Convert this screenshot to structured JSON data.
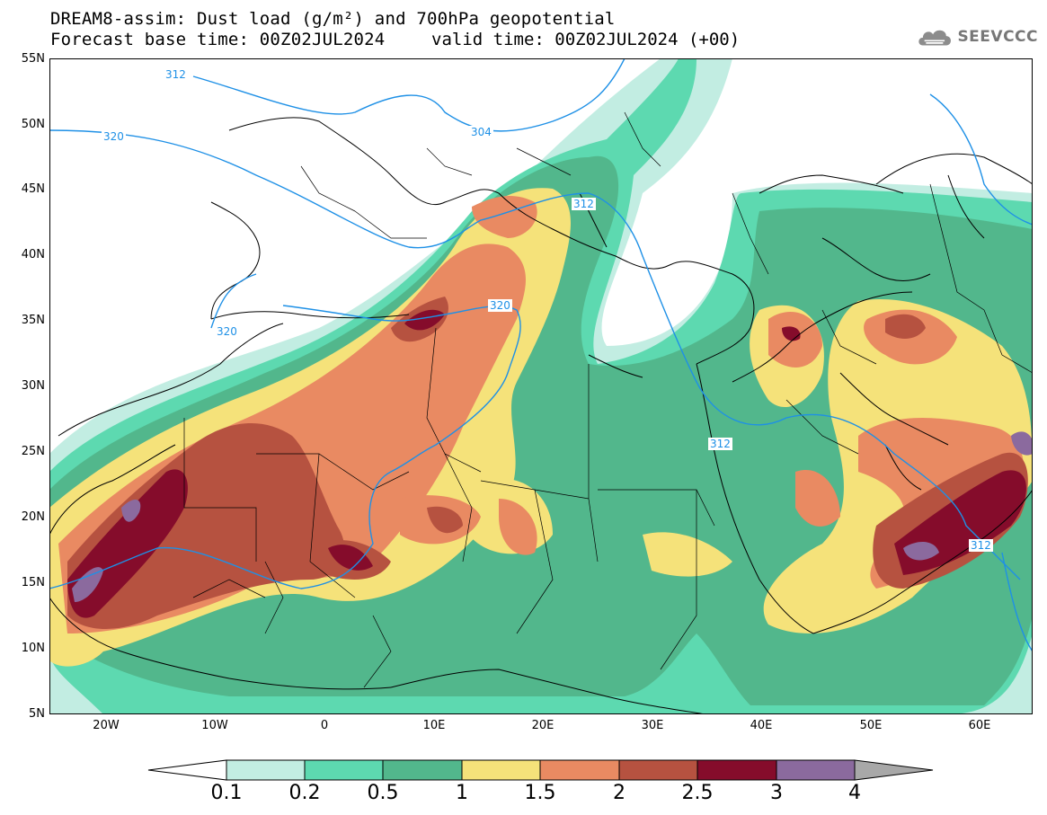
{
  "title": {
    "line1": "DREAM8-assim: Dust load (g/m²) and 700hPa geopotential",
    "line2_left": "Forecast base time: 00Z02JUL2024",
    "line2_right": "valid time: 00Z02JUL2024 (+00)"
  },
  "logo": {
    "text": "SEEVCCC",
    "icon": "cloud-icon"
  },
  "axes": {
    "y_labels": [
      "55N",
      "50N",
      "45N",
      "40N",
      "35N",
      "30N",
      "25N",
      "20N",
      "15N",
      "10N",
      "5N"
    ],
    "x_labels": [
      "20W",
      "10W",
      "0",
      "10E",
      "20E",
      "30E",
      "40E",
      "50E",
      "60E"
    ]
  },
  "contours": {
    "labels": [
      "312",
      "304",
      "320",
      "312",
      "320",
      "312",
      "320",
      "312"
    ]
  },
  "colorbar": {
    "tick_labels": [
      "0.1",
      "0.2",
      "0.5",
      "1",
      "1.5",
      "2",
      "2.5",
      "3",
      "4"
    ],
    "colors": [
      "#ffffff",
      "#c2ede2",
      "#5dd9b0",
      "#52b78c",
      "#f5e27a",
      "#e98a62",
      "#b65240",
      "#850c2b",
      "#8b6a9e",
      "#a8a8a8"
    ]
  },
  "colors": {
    "land_line": "#000000",
    "contour": "#1e90e6",
    "background": "#ffffff"
  }
}
